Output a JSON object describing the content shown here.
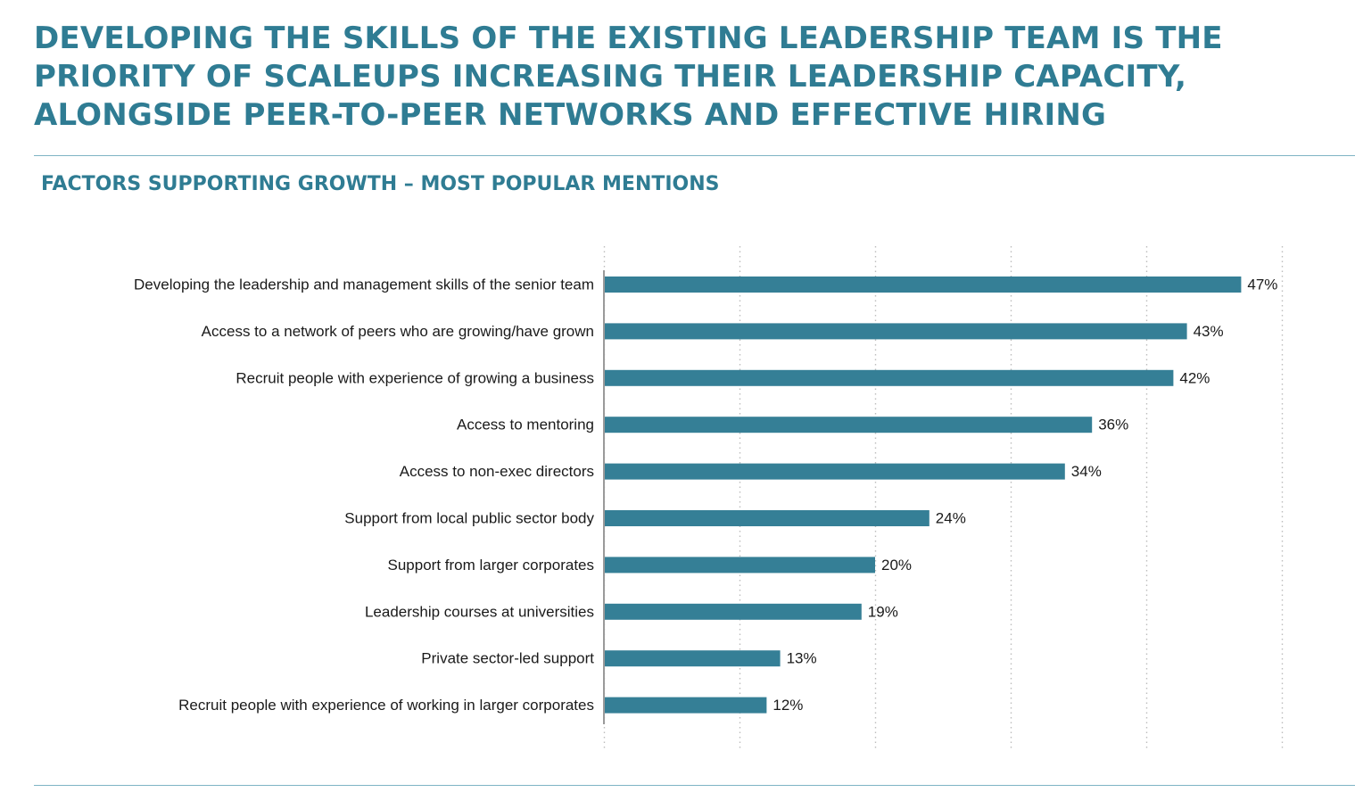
{
  "headline": "DEVELOPING THE SKILLS OF THE EXISTING LEADERSHIP TEAM IS THE PRIORITY OF SCALEUPS INCREASING THEIR LEADERSHIP CAPACITY, ALONGSIDE PEER-TO-PEER NETWORKS AND EFFECTIVE HIRING",
  "colors": {
    "accent": "#2f7c93",
    "bar": "#357f96",
    "rule": "#7eb4c4",
    "grid": "#bdbdbd",
    "axis": "#9a9a9a"
  },
  "chart_data": {
    "type": "bar",
    "orientation": "horizontal",
    "title": "FACTORS SUPPORTING GROWTH – MOST POPULAR MENTIONS",
    "xlim": [
      0,
      50
    ],
    "grid": "vertical dotted",
    "categories": [
      "Developing the leadership and management skills of the senior team",
      "Access to a network of peers who are growing/have grown",
      "Recruit people with experience of growing a business",
      "Access to mentoring",
      "Access to non-exec directors",
      "Support from local public sector body",
      "Support from larger corporates",
      "Leadership courses at universities",
      "Private sector-led support",
      "Recruit people with experience of working in larger corporates"
    ],
    "values": [
      47,
      43,
      42,
      36,
      34,
      24,
      20,
      19,
      13,
      12
    ],
    "value_labels": [
      "47%",
      "43%",
      "42%",
      "36%",
      "34%",
      "24%",
      "20%",
      "19%",
      "13%",
      "12%"
    ]
  }
}
